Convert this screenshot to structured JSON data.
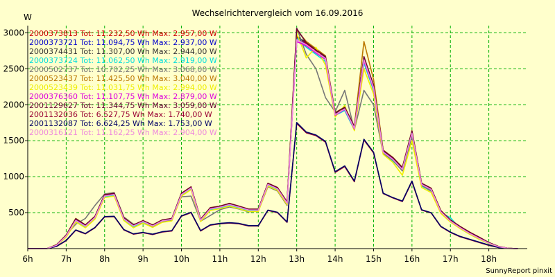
{
  "chart_data": {
    "type": "line",
    "title": "Wechselrichtervergleich vom 16.09.2016",
    "ylabel": "W",
    "xlabel": "",
    "footer": "SunnyReport pinxit",
    "xlim": [
      6,
      19
    ],
    "ylim": [
      0,
      3100
    ],
    "x_ticks": [
      6,
      7,
      8,
      9,
      10,
      11,
      12,
      13,
      14,
      15,
      16,
      17,
      18
    ],
    "x_tick_labels": [
      "6h",
      "7h",
      "8h",
      "9h",
      "10h",
      "11h",
      "12h",
      "13h",
      "14h",
      "15h",
      "16h",
      "17h",
      "18h"
    ],
    "y_ticks": [
      500,
      1000,
      1500,
      2000,
      2500,
      3000
    ],
    "y_tick_labels": [
      "500",
      "1000",
      "1500",
      "2000",
      "2500",
      "3000"
    ],
    "grid": true,
    "background_color": "#ffffcc",
    "plot_background_color": "#ffffcc",
    "grid_color": "#00b000",
    "x": [
      6.0,
      6.25,
      6.5,
      6.75,
      7.0,
      7.25,
      7.5,
      7.75,
      8.0,
      8.25,
      8.5,
      8.75,
      9.0,
      9.25,
      9.5,
      9.75,
      10.0,
      10.25,
      10.5,
      10.75,
      11.0,
      11.25,
      11.5,
      11.75,
      12.0,
      12.25,
      12.5,
      12.75,
      13.0,
      13.25,
      13.5,
      13.75,
      14.0,
      14.25,
      14.5,
      14.75,
      15.0,
      15.25,
      15.5,
      15.75,
      16.0,
      16.25,
      16.5,
      16.75,
      17.0,
      17.25,
      17.5,
      17.75,
      18.0,
      18.25,
      18.5,
      18.75
    ],
    "legend": [
      {
        "text": "2000373813 Tot: 11.232,50 Wh Max: 2.957,00 W",
        "color": "#cc0000"
      },
      {
        "text": "2000373721 Tot: 11.094,75 Wh Max: 2.937,00 W",
        "color": "#0000cc"
      },
      {
        "text": "2000374431 Tot: 11.307,00 Wh Max: 2.944,00 W",
        "color": "#333333"
      },
      {
        "text": "2000373724 Tot: 11.062,50 Wh Max: 2.919,00 W",
        "color": "#00dddd"
      },
      {
        "text": "2000502737 Tot: 10.702,25 Wh Max: 3.068,00 W",
        "color": "#777777"
      },
      {
        "text": "2000523437 Tot: 11.425,50 Wh Max: 3.040,00 W",
        "color": "#bb7700"
      },
      {
        "text": "2000523439 Tot: 11.031,75 Wh Max: 2.994,00 W",
        "color": "#eeee00"
      },
      {
        "text": "2000376360 Tot: 11.107,75 Wh Max: 2.879,00 W",
        "color": "#dd00dd"
      },
      {
        "text": "2001129627 Tot: 11.344,75 Wh Max: 3.059,00 W",
        "color": "#660033"
      },
      {
        "text": "2001132036 Tot: 6.527,75 Wh Max: 1.740,00 W",
        "color": "#990033"
      },
      {
        "text": "2001132087 Tot: 6.624,25 Wh Max: 1.753,00 W",
        "color": "#000066"
      },
      {
        "text": "2000316121 Tot: 11.162,25 Wh Max: 2.904,00 W",
        "color": "#ee88dd"
      }
    ],
    "series": [
      {
        "name": "2000373813",
        "color": "#cc0000",
        "values": [
          0,
          0,
          0,
          50,
          180,
          400,
          320,
          440,
          740,
          760,
          420,
          320,
          380,
          320,
          390,
          410,
          760,
          850,
          400,
          560,
          580,
          620,
          580,
          540,
          540,
          900,
          840,
          640,
          2957,
          2850,
          2750,
          2650,
          1870,
          1950,
          1680,
          2650,
          2250,
          1350,
          1250,
          1110,
          1620,
          900,
          830,
          520,
          390,
          300,
          220,
          150,
          80,
          30,
          5,
          0
        ]
      },
      {
        "name": "2000373721",
        "color": "#0000cc",
        "values": [
          0,
          0,
          0,
          45,
          170,
          390,
          310,
          430,
          730,
          750,
          410,
          315,
          375,
          315,
          385,
          405,
          750,
          840,
          395,
          550,
          575,
          610,
          575,
          535,
          535,
          890,
          830,
          630,
          2937,
          2830,
          2730,
          2640,
          1860,
          1940,
          1670,
          2620,
          2230,
          1340,
          1240,
          1100,
          1600,
          890,
          820,
          510,
          380,
          290,
          210,
          140,
          75,
          25,
          5,
          0
        ]
      },
      {
        "name": "2000374431",
        "color": "#333333",
        "values": [
          0,
          0,
          0,
          50,
          185,
          410,
          325,
          445,
          745,
          765,
          425,
          325,
          385,
          325,
          395,
          415,
          765,
          855,
          405,
          565,
          585,
          625,
          585,
          545,
          545,
          905,
          845,
          645,
          2944,
          2870,
          2770,
          2660,
          1880,
          1960,
          1690,
          2660,
          2260,
          1360,
          1260,
          1120,
          1630,
          905,
          835,
          525,
          395,
          305,
          225,
          155,
          85,
          30,
          5,
          0
        ]
      },
      {
        "name": "2000373724",
        "color": "#00dddd",
        "values": [
          0,
          0,
          0,
          45,
          175,
          380,
          300,
          420,
          720,
          740,
          400,
          305,
          365,
          305,
          375,
          395,
          740,
          830,
          385,
          540,
          565,
          600,
          565,
          525,
          525,
          880,
          820,
          620,
          2919,
          2800,
          2700,
          2600,
          1850,
          1920,
          1650,
          2580,
          2200,
          1330,
          1220,
          1090,
          1580,
          870,
          800,
          500,
          430,
          280,
          200,
          130,
          70,
          20,
          5,
          0
        ]
      },
      {
        "name": "2000502737",
        "color": "#777777",
        "values": [
          0,
          0,
          0,
          50,
          190,
          340,
          420,
          600,
          760,
          780,
          440,
          340,
          350,
          310,
          370,
          400,
          720,
          730,
          380,
          460,
          540,
          580,
          550,
          510,
          520,
          860,
          800,
          600,
          3068,
          2700,
          2500,
          2100,
          1900,
          2200,
          1650,
          2200,
          2000,
          1320,
          1230,
          1080,
          1560,
          880,
          800,
          500,
          380,
          290,
          210,
          140,
          75,
          25,
          5,
          0
        ]
      },
      {
        "name": "2000523437",
        "color": "#bb7700",
        "values": [
          0,
          0,
          0,
          55,
          190,
          420,
          330,
          450,
          750,
          770,
          430,
          330,
          390,
          330,
          400,
          420,
          770,
          860,
          410,
          570,
          590,
          630,
          590,
          550,
          550,
          910,
          850,
          650,
          3040,
          2880,
          2780,
          2680,
          1890,
          1970,
          1700,
          2880,
          2350,
          1370,
          1270,
          1130,
          1640,
          910,
          840,
          530,
          400,
          310,
          230,
          160,
          85,
          30,
          5,
          0
        ]
      },
      {
        "name": "2000523439",
        "color": "#eeee00",
        "values": [
          0,
          0,
          0,
          40,
          160,
          370,
          290,
          410,
          710,
          730,
          390,
          290,
          355,
          295,
          365,
          385,
          730,
          820,
          375,
          530,
          555,
          590,
          555,
          515,
          515,
          870,
          810,
          610,
          2994,
          2650,
          2800,
          2550,
          1830,
          1990,
          1640,
          2500,
          2150,
          1310,
          1200,
          1020,
          1500,
          850,
          780,
          490,
          370,
          280,
          200,
          130,
          70,
          20,
          5,
          0
        ]
      },
      {
        "name": "2000376360",
        "color": "#dd00dd",
        "values": [
          0,
          0,
          0,
          48,
          178,
          395,
          315,
          435,
          735,
          755,
          415,
          318,
          378,
          318,
          388,
          408,
          755,
          845,
          398,
          555,
          578,
          615,
          578,
          538,
          538,
          895,
          835,
          635,
          2879,
          2820,
          2720,
          2630,
          1855,
          1935,
          1665,
          2610,
          2220,
          1345,
          1245,
          1105,
          1610,
          895,
          825,
          515,
          385,
          295,
          215,
          145,
          78,
          28,
          5,
          0
        ]
      },
      {
        "name": "2001129627",
        "color": "#660033",
        "values": [
          0,
          0,
          0,
          52,
          188,
          415,
          328,
          448,
          748,
          768,
          428,
          328,
          388,
          328,
          398,
          418,
          768,
          858,
          408,
          568,
          588,
          628,
          588,
          548,
          548,
          908,
          848,
          648,
          3059,
          2860,
          2760,
          2670,
          1885,
          1965,
          1695,
          2670,
          2270,
          1365,
          1265,
          1125,
          1635,
          908,
          838,
          528,
          398,
          308,
          228,
          158,
          84,
          30,
          5,
          0
        ]
      },
      {
        "name": "2001132036",
        "color": "#990033",
        "values": [
          0,
          0,
          0,
          30,
          110,
          255,
          205,
          290,
          440,
          445,
          260,
          200,
          220,
          195,
          230,
          245,
          450,
          500,
          245,
          325,
          345,
          355,
          345,
          315,
          315,
          530,
          500,
          365,
          1740,
          1610,
          1570,
          1480,
          1060,
          1140,
          930,
          1510,
          1330,
          765,
          705,
          655,
          930,
          535,
          495,
          305,
          225,
          165,
          125,
          85,
          45,
          15,
          3,
          0
        ]
      },
      {
        "name": "2001132087",
        "color": "#000066",
        "values": [
          0,
          0,
          0,
          32,
          115,
          260,
          210,
          295,
          445,
          450,
          265,
          205,
          225,
          200,
          235,
          250,
          455,
          505,
          250,
          330,
          350,
          360,
          350,
          320,
          320,
          535,
          505,
          370,
          1753,
          1620,
          1580,
          1490,
          1070,
          1150,
          940,
          1520,
          1340,
          770,
          710,
          660,
          940,
          540,
          500,
          310,
          230,
          170,
          130,
          90,
          50,
          15,
          3,
          0
        ]
      },
      {
        "name": "2000316121",
        "color": "#ee88dd",
        "values": [
          0,
          0,
          0,
          46,
          176,
          392,
          312,
          432,
          732,
          752,
          412,
          316,
          376,
          316,
          386,
          406,
          752,
          842,
          396,
          552,
          576,
          612,
          576,
          536,
          536,
          892,
          832,
          632,
          2904,
          2835,
          2735,
          2645,
          1862,
          1942,
          1672,
          2625,
          2235,
          1342,
          1242,
          1102,
          1605,
          892,
          822,
          512,
          382,
          292,
          212,
          142,
          76,
          26,
          5,
          0
        ]
      }
    ]
  }
}
